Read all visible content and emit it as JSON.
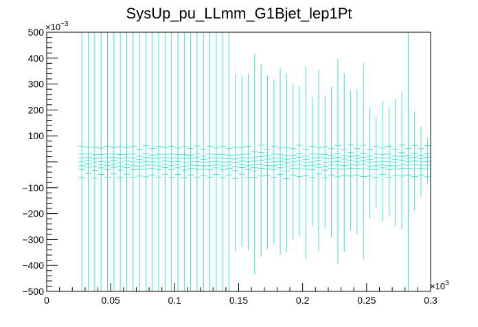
{
  "chart_data": {
    "type": "scatter",
    "title": "SysUp_pu_LLmm_G1Bjet_lep1Pt",
    "xlabel": "",
    "ylabel": "",
    "x_multiplier_label": "×10",
    "x_multiplier_exponent": "3",
    "y_multiplier_label": "×10",
    "y_multiplier_exponent": "−3",
    "xlim": [
      0,
      0.3
    ],
    "ylim": [
      -500,
      500
    ],
    "x_ticks": [
      {
        "value": 0,
        "label": "0"
      },
      {
        "value": 0.05,
        "label": "0.05"
      },
      {
        "value": 0.1,
        "label": "0.1"
      },
      {
        "value": 0.15,
        "label": "0.15"
      },
      {
        "value": 0.2,
        "label": "0.2"
      },
      {
        "value": 0.25,
        "label": "0.25"
      },
      {
        "value": 0.3,
        "label": "0.3"
      }
    ],
    "y_ticks": [
      {
        "value": -500,
        "label": "−500"
      },
      {
        "value": -400,
        "label": "−400"
      },
      {
        "value": -300,
        "label": "−300"
      },
      {
        "value": -200,
        "label": "−200"
      },
      {
        "value": -100,
        "label": "−100"
      },
      {
        "value": 100,
        "label": "100"
      },
      {
        "value": 200,
        "label": "200"
      },
      {
        "value": 300,
        "label": "300"
      },
      {
        "value": 400,
        "label": "400"
      },
      {
        "value": 500,
        "label": "500"
      }
    ],
    "series_color": "#40e0d0",
    "bin_width": 0.005,
    "x_start": 0.0275,
    "series": [
      {
        "groups": [
          {
            "y": 0,
            "errors": [
              500,
              500,
              500,
              500,
              500,
              500,
              500,
              500,
              500,
              500,
              500,
              500,
              500,
              500,
              500,
              500,
              500,
              500,
              500,
              500,
              500,
              500,
              500,
              343,
              340,
              348,
              406,
              377,
              342,
              320,
              440,
              349,
              395,
              313,
              284,
              374,
              248,
              347,
              255,
              264,
              394,
              349,
              268,
              281,
              386,
              216,
              176,
              231,
              212,
              246,
              269,
              197,
              193,
              135,
              231,
              161,
              168,
              190,
              172,
              181,
              165,
              149,
              138,
              115,
              161,
              183,
              129,
              114,
              152,
              153,
              182,
              154,
              149,
              120,
              92,
              76,
              95,
              93,
              112,
              95,
              93,
              97,
              99,
              73,
              74,
              62,
              60,
              95,
              83,
              81,
              80,
              98,
              104,
              75,
              82,
              83,
              86,
              93,
              89,
              97,
              69,
              90,
              82,
              66,
              60
            ]
          }
        ]
      },
      {
        "points": [
          {
            "x": 0.0275,
            "y": 0,
            "yerr": 60
          },
          {
            "x": 0.0325,
            "y": 5,
            "yerr": 60
          },
          {
            "x": 0.0375,
            "y": -3,
            "yerr": 58
          },
          {
            "x": 0.0425,
            "y": 2,
            "yerr": 55
          },
          {
            "x": 0.0475,
            "y": 0,
            "yerr": 50
          },
          {
            "x": 0.0525,
            "y": 4,
            "yerr": 45
          },
          {
            "x": 0.0575,
            "y": -2,
            "yerr": 48
          },
          {
            "x": 0.0625,
            "y": 3,
            "yerr": 42
          },
          {
            "x": 0.0675,
            "y": 0,
            "yerr": 40
          },
          {
            "x": 0.0725,
            "y": -4,
            "yerr": 44
          },
          {
            "x": 0.0775,
            "y": 2,
            "yerr": 40
          },
          {
            "x": 0.0825,
            "y": 0,
            "yerr": 36
          },
          {
            "x": 0.0875,
            "y": -1,
            "yerr": 38
          },
          {
            "x": 0.0925,
            "y": 3,
            "yerr": 35
          },
          {
            "x": 0.0975,
            "y": 0,
            "yerr": 45
          },
          {
            "x": 0.1025,
            "y": 2,
            "yerr": 40
          },
          {
            "x": 0.1075,
            "y": -2,
            "yerr": 36
          },
          {
            "x": 0.1125,
            "y": 0,
            "yerr": 35
          },
          {
            "x": 0.1175,
            "y": 1,
            "yerr": 42
          },
          {
            "x": 0.1225,
            "y": -3,
            "yerr": 33
          },
          {
            "x": 0.1275,
            "y": 0,
            "yerr": 34
          },
          {
            "x": 0.1325,
            "y": 2,
            "yerr": 38
          },
          {
            "x": 0.1375,
            "y": -1,
            "yerr": 32
          },
          {
            "x": 0.1425,
            "y": 0,
            "yerr": 30
          }
        ]
      }
    ],
    "bins": [
      {
        "x": 0.0275,
        "y": 0,
        "err": 500
      },
      {
        "x": 0.0325,
        "y": 5,
        "err": 500
      },
      {
        "x": 0.0375,
        "y": -3,
        "err": 500
      },
      {
        "x": 0.0425,
        "y": 2,
        "err": 500
      },
      {
        "x": 0.0475,
        "y": 0,
        "err": 500
      },
      {
        "x": 0.0525,
        "y": 4,
        "err": 500
      },
      {
        "x": 0.0575,
        "y": -2,
        "err": 500
      },
      {
        "x": 0.0625,
        "y": 3,
        "err": 500
      },
      {
        "x": 0.0675,
        "y": 0,
        "err": 500
      },
      {
        "x": 0.0725,
        "y": -4,
        "err": 500
      },
      {
        "x": 0.0775,
        "y": 2,
        "err": 500
      },
      {
        "x": 0.0825,
        "y": 0,
        "err": 500
      },
      {
        "x": 0.0875,
        "y": -1,
        "err": 500
      },
      {
        "x": 0.0925,
        "y": 3,
        "err": 500
      },
      {
        "x": 0.0975,
        "y": 0,
        "err": 500
      },
      {
        "x": 0.1025,
        "y": 2,
        "err": 500
      },
      {
        "x": 0.1075,
        "y": -2,
        "err": 500
      },
      {
        "x": 0.1125,
        "y": 0,
        "err": 500
      },
      {
        "x": 0.1175,
        "y": 1,
        "err": 500
      },
      {
        "x": 0.1225,
        "y": -3,
        "err": 500
      },
      {
        "x": 0.1275,
        "y": 0,
        "err": 500
      },
      {
        "x": 0.1325,
        "y": 2,
        "err": 500
      },
      {
        "x": 0.1375,
        "y": -1,
        "err": 500
      },
      {
        "x": 0.1425,
        "y": 0,
        "err": 500
      },
      {
        "x": 0.1475,
        "y": -4,
        "err": 342
      },
      {
        "x": 0.1525,
        "y": 3,
        "err": 330
      },
      {
        "x": 0.1575,
        "y": 0,
        "err": 340
      },
      {
        "x": 0.1625,
        "y": -10,
        "err": 425
      },
      {
        "x": 0.1675,
        "y": 5,
        "err": 372
      },
      {
        "x": 0.1725,
        "y": -2,
        "err": 335
      },
      {
        "x": 0.1775,
        "y": 0,
        "err": 318
      },
      {
        "x": 0.1825,
        "y": 2,
        "err": 362
      },
      {
        "x": 0.1875,
        "y": -5,
        "err": 345
      },
      {
        "x": 0.1925,
        "y": 0,
        "err": 300
      },
      {
        "x": 0.1975,
        "y": 3,
        "err": 290
      },
      {
        "x": 0.2025,
        "y": -3,
        "err": 372
      },
      {
        "x": 0.2075,
        "y": 0,
        "err": 250
      },
      {
        "x": 0.2125,
        "y": 4,
        "err": 350
      },
      {
        "x": 0.2175,
        "y": -2,
        "err": 255
      },
      {
        "x": 0.2225,
        "y": 0,
        "err": 290
      },
      {
        "x": 0.2275,
        "y": 2,
        "err": 395
      },
      {
        "x": 0.2325,
        "y": -2,
        "err": 345
      },
      {
        "x": 0.2375,
        "y": 5,
        "err": 268
      },
      {
        "x": 0.2425,
        "y": 0,
        "err": 280
      },
      {
        "x": 0.2475,
        "y": 3,
        "err": 380
      },
      {
        "x": 0.2525,
        "y": -4,
        "err": 215
      },
      {
        "x": 0.2575,
        "y": 0,
        "err": 175
      },
      {
        "x": 0.2625,
        "y": 2,
        "err": 230
      },
      {
        "x": 0.2675,
        "y": 0,
        "err": 210
      },
      {
        "x": 0.2725,
        "y": -3,
        "err": 245
      },
      {
        "x": 0.2775,
        "y": 5,
        "err": 265
      },
      {
        "x": 0.2825,
        "y": 0,
        "err": 500
      },
      {
        "x": 0.2875,
        "y": 3,
        "err": 190
      },
      {
        "x": 0.2925,
        "y": 0,
        "err": 135
      },
      {
        "x": 0.2975,
        "y": 2,
        "err": 90
      }
    ],
    "marker_rows": [
      {
        "label": "",
        "offsets": [
          60,
          -60,
          30,
          -30,
          15,
          -15
        ]
      }
    ],
    "grid": false,
    "legend": "none"
  }
}
